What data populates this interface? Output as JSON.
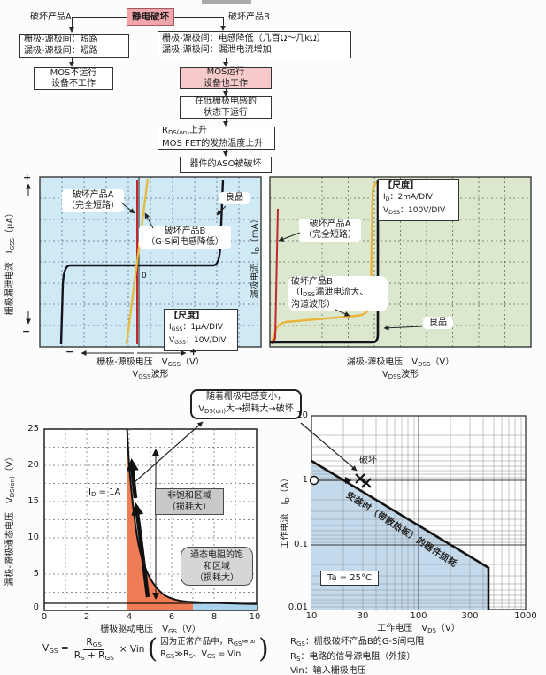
{
  "flowchart": {
    "root": "静电破坏",
    "label_a": "破坏产品A",
    "label_b": "破坏产品B",
    "box_a1": [
      "栅极-源极间：短路",
      "漏极-源极间：短路"
    ],
    "box_a2": [
      "MOS不运行",
      "设备不工作"
    ],
    "box_b1": [
      "栅极-源极间：电感降低（几百Ω～几kΩ）",
      "漏极-源极间：漏泄电流增加"
    ],
    "box_b2": [
      "MOS运行",
      "设备也工作"
    ],
    "box_b3": [
      "在低栅极电感的",
      "状态下运行"
    ],
    "box_b4_l1": [
      {
        "t": "R"
      },
      {
        "t": "DS(on)",
        "sub": true
      },
      {
        "t": "上升"
      }
    ],
    "box_b4_l2": "MOS FET的发热温度上升",
    "box_b5": "器件的ASO被破坏"
  },
  "scope_gss": {
    "ylabel": [
      {
        "t": "栅极漏泄电流　I"
      },
      {
        "t": "GSS",
        "sub": true
      },
      {
        "t": "（μA）"
      }
    ],
    "plus": "+",
    "minus": "−",
    "zero": "0",
    "label_a": [
      "破坏产品A",
      "（完全短路）"
    ],
    "label_b": [
      "破坏产品B",
      "（G-S间电感降低）"
    ],
    "label_good": "良品",
    "scale_title": "【尺度】",
    "scale_l1": [
      {
        "t": "I"
      },
      {
        "t": "GSS",
        "sub": true
      },
      {
        "t": "：1μA/DIV"
      }
    ],
    "scale_l2": [
      {
        "t": "V"
      },
      {
        "t": "GSS",
        "sub": true
      },
      {
        "t": "：10V/DIV"
      }
    ],
    "xlabel": [
      {
        "t": "栅极-源极电压　V"
      },
      {
        "t": "GSS",
        "sub": true
      },
      {
        "t": "（V）"
      }
    ],
    "waveform": [
      {
        "t": "V"
      },
      {
        "t": "GSS",
        "sub": true
      },
      {
        "t": "波形"
      }
    ]
  },
  "scope_dss": {
    "ylabel": [
      {
        "t": "漏极电流　I"
      },
      {
        "t": "D",
        "sub": true
      },
      {
        "t": "（mA）"
      }
    ],
    "label_a": [
      "破坏产品A",
      "（完全短路）"
    ],
    "label_b_l1": "破坏产品B",
    "label_b_l2": [
      {
        "t": "（I"
      },
      {
        "t": "DSS",
        "sub": true
      },
      {
        "t": "漏泄电流大、"
      }
    ],
    "label_b_l3": "沟道波形）",
    "label_good": "良品",
    "scale_title": "【尺度】",
    "scale_l1": [
      {
        "t": "I"
      },
      {
        "t": "D",
        "sub": true
      },
      {
        "t": "：2mA/DIV"
      }
    ],
    "scale_l2": [
      {
        "t": "V"
      },
      {
        "t": "DSS",
        "sub": true
      },
      {
        "t": "：100V/DIV"
      }
    ],
    "xlabel": [
      {
        "t": "漏极-源极电压　V"
      },
      {
        "t": "DSS",
        "sub": true
      },
      {
        "t": "（V）"
      }
    ],
    "waveform": [
      {
        "t": "V"
      },
      {
        "t": "DSS",
        "sub": true
      },
      {
        "t": "波形"
      }
    ]
  },
  "callout": {
    "line1": "随着栅极电感变小，",
    "line2": [
      {
        "t": "V"
      },
      {
        "t": "DS(on)",
        "sub": true
      },
      {
        "t": "大→损耗大→破坏"
      }
    ]
  },
  "vgs": {
    "ylabel": [
      {
        "t": "漏极-源极通态电压　V"
      },
      {
        "t": "DS(on)",
        "sub": true
      },
      {
        "t": "（V）"
      }
    ],
    "xlabel": [
      {
        "t": "栅极驱动电压　V"
      },
      {
        "t": "GS",
        "sub": true
      },
      {
        "t": "（V）"
      }
    ],
    "y_ticks": [
      "25",
      "20",
      "15",
      "10",
      "5",
      "0"
    ],
    "x_ticks": [
      "0",
      "2",
      "4",
      "6",
      "8",
      "10"
    ],
    "id_label": [
      {
        "t": "I"
      },
      {
        "t": "D",
        "sub": true
      },
      {
        "t": " = 1A"
      }
    ],
    "region1": [
      "非饱和区域",
      "（损耗大）"
    ],
    "region2": [
      "通态电阻的饱",
      "和区域",
      "（损耗大）"
    ]
  },
  "soa": {
    "ylabel": [
      {
        "t": "工作电流　I"
      },
      {
        "t": "D",
        "sub": true
      },
      {
        "t": "（A）"
      }
    ],
    "xlabel": [
      {
        "t": "工作电压　V"
      },
      {
        "t": "DS",
        "sub": true
      },
      {
        "t": "（V）"
      }
    ],
    "y_ticks": [
      "10",
      "1",
      "0.1",
      "0.01"
    ],
    "x_ticks": [
      "10",
      "30",
      "100",
      "300",
      "1000"
    ],
    "break_label": "破坏",
    "diag_label": "安装时（带散热板）的器件损耗",
    "ta_label": "Ta = 25°C"
  },
  "formula": {
    "lhs": [
      {
        "t": "V"
      },
      {
        "t": "GS",
        "sub": true
      },
      {
        "t": " ="
      }
    ],
    "num": [
      {
        "t": "R"
      },
      {
        "t": "GS",
        "sub": true
      }
    ],
    "den": [
      {
        "t": "R"
      },
      {
        "t": "S",
        "sub": true
      },
      {
        "t": " + R"
      },
      {
        "t": "GS",
        "sub": true
      }
    ],
    "times": "× Vin",
    "note1": [
      {
        "t": "因为正常产品中，R"
      },
      {
        "t": "GS",
        "sub": true
      },
      {
        "t": "≈∞"
      }
    ],
    "note2": [
      {
        "t": "R"
      },
      {
        "t": "GS",
        "sub": true
      },
      {
        "t": "≫R"
      },
      {
        "t": "S",
        "sub": true
      },
      {
        "t": "、V"
      },
      {
        "t": "GS",
        "sub": true
      },
      {
        "t": " = Vin"
      }
    ]
  },
  "legend": {
    "r1": [
      {
        "t": "R"
      },
      {
        "t": "GS",
        "sub": true
      },
      {
        "t": "：栅极破坏产品B的G-S间电阻"
      }
    ],
    "r2": [
      {
        "t": "R"
      },
      {
        "t": "S",
        "sub": true
      },
      {
        "t": "：电路的信号源电阻（外接）"
      }
    ],
    "r3": "Vin：输入栅极电压"
  },
  "colors": {
    "pink_dark": "#f2a6ac",
    "pink_light": "#f6caca",
    "scope_gss_bg": "#cfe9f5",
    "scope_dss_bg": "#dbe8cd",
    "trace_red": "#c1272d",
    "trace_yellow": "#e3bb3d",
    "trace_black": "#14141e",
    "region_orange": "#ef7c54",
    "region_blue": "#a9d3ea",
    "soa_blue": "#c3d9ec"
  },
  "chart_data": [
    {
      "type": "line",
      "title": "VGSS波形",
      "xlabel": "栅极-源极电压 VGSS (V)",
      "ylabel": "栅极漏泄电流 IGSS (μA)",
      "scale": {
        "IGSS": "1μA/DIV",
        "VGSS": "10V/DIV"
      },
      "grid": "10x8 divisions, dashed",
      "series": [
        {
          "name": "破坏产品A（完全短路）",
          "color": "#c1272d",
          "description": "vertical line at VGSS = 0 (dead short)"
        },
        {
          "name": "破坏产品B（G-S间电感降低）",
          "color": "#e3bb3d",
          "description": "steep slightly-tilted line through 0 (reduced G-S impedance)"
        },
        {
          "name": "良品",
          "color": "#14141e",
          "description": "flat ~0 μA leakage, breakdown rise at about +30 V and drop at about -30 V"
        }
      ]
    },
    {
      "type": "line",
      "title": "VDSS波形",
      "xlabel": "漏极-源极电压 VDSS (V)",
      "ylabel": "漏极电流 ID (mA)",
      "scale": {
        "ID": "2mA/DIV",
        "VDSS": "100V/DIV"
      },
      "grid": "10x8 divisions, dashed",
      "series": [
        {
          "name": "破坏产品A（完全短路）",
          "color": "#c1272d",
          "description": "near-vertical line at VDSS ≈ 0 (dead short)"
        },
        {
          "name": "破坏产品B（IDSS漏泄电流大、沟道波形）",
          "color": "#e3bb3d",
          "description": "large leakage ramp then breakdown just before good device"
        },
        {
          "name": "良品",
          "color": "#14141e",
          "description": "zero current then sharp avalanche rise at ≈ 400 V"
        }
      ]
    },
    {
      "type": "line",
      "xlabel": "栅极驱动电压 VGS (V)",
      "ylabel": "漏极-源极通态电压 VDS(on) (V)",
      "xlim": [
        0,
        10
      ],
      "ylim": [
        0,
        25
      ],
      "condition": "ID = 1A",
      "x": [
        3.9,
        4.0,
        4.2,
        4.5,
        5.0,
        5.5,
        6.0,
        6.5,
        7.0,
        8.0,
        9.0,
        10.0
      ],
      "y": [
        25,
        22,
        15,
        8.5,
        4.8,
        3.2,
        2.2,
        1.7,
        1.4,
        1.15,
        1.05,
        1.0
      ],
      "regions": [
        {
          "label": "非饱和区域（损耗大）",
          "x_range": [
            3.9,
            7
          ],
          "color": "#ef7c54"
        },
        {
          "label": "通态电阻的饱和区域（损耗大）",
          "x_range": [
            7,
            10
          ],
          "color": "#a9d3ea"
        }
      ],
      "annotation": "随着栅极电感变小，VDS(on)大→损耗大→破坏"
    },
    {
      "type": "line",
      "scale": "log-log",
      "xlabel": "工作电压 VDS (V)",
      "ylabel": "工作电流 ID (A)",
      "xlim": [
        10,
        1000
      ],
      "ylim": [
        0.01,
        10
      ],
      "boundary": [
        [
          10,
          2
        ],
        [
          420,
          0.048
        ],
        [
          420,
          0.01
        ]
      ],
      "boundary_label": "安装时（带散热板）的器件损耗",
      "markers": [
        {
          "symbol": "circle",
          "x": 10,
          "y": 1
        },
        {
          "symbol": "x",
          "x": 28,
          "y": 1,
          "label": "破坏"
        },
        {
          "symbol": "x",
          "x": 33,
          "y": 0.9,
          "label": "破坏"
        }
      ],
      "condition": "Ta = 25°C"
    }
  ]
}
